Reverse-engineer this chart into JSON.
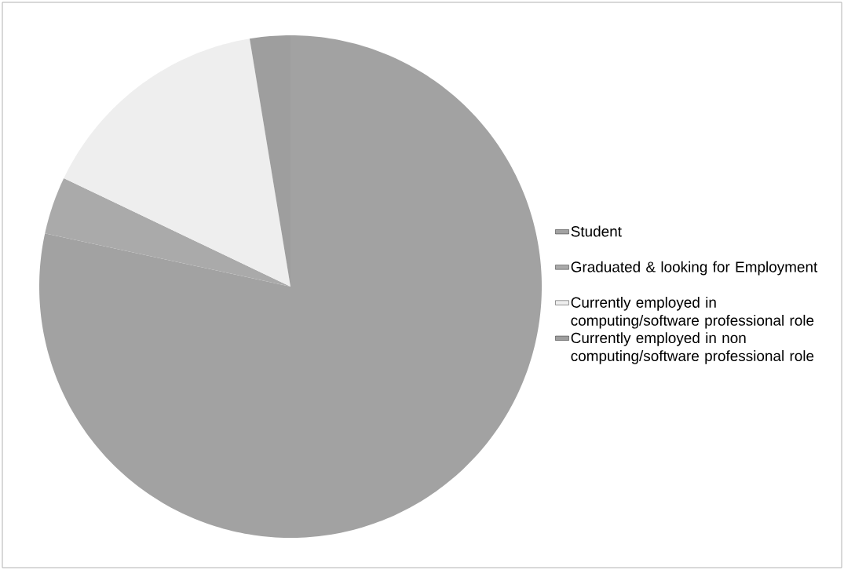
{
  "chart_data": {
    "type": "pie",
    "categories": [
      "Student",
      "Graduated & looking for Employment",
      "Currently employed in computing/software professional role",
      "Currently employed in non computing/software professional role"
    ],
    "values": [
      78.4,
      3.7,
      15.3,
      2.6
    ],
    "colors": [
      "#a2a2a2",
      "#aaaaaa",
      "#eeeeee",
      "#9e9e9e"
    ],
    "legend": "right"
  }
}
